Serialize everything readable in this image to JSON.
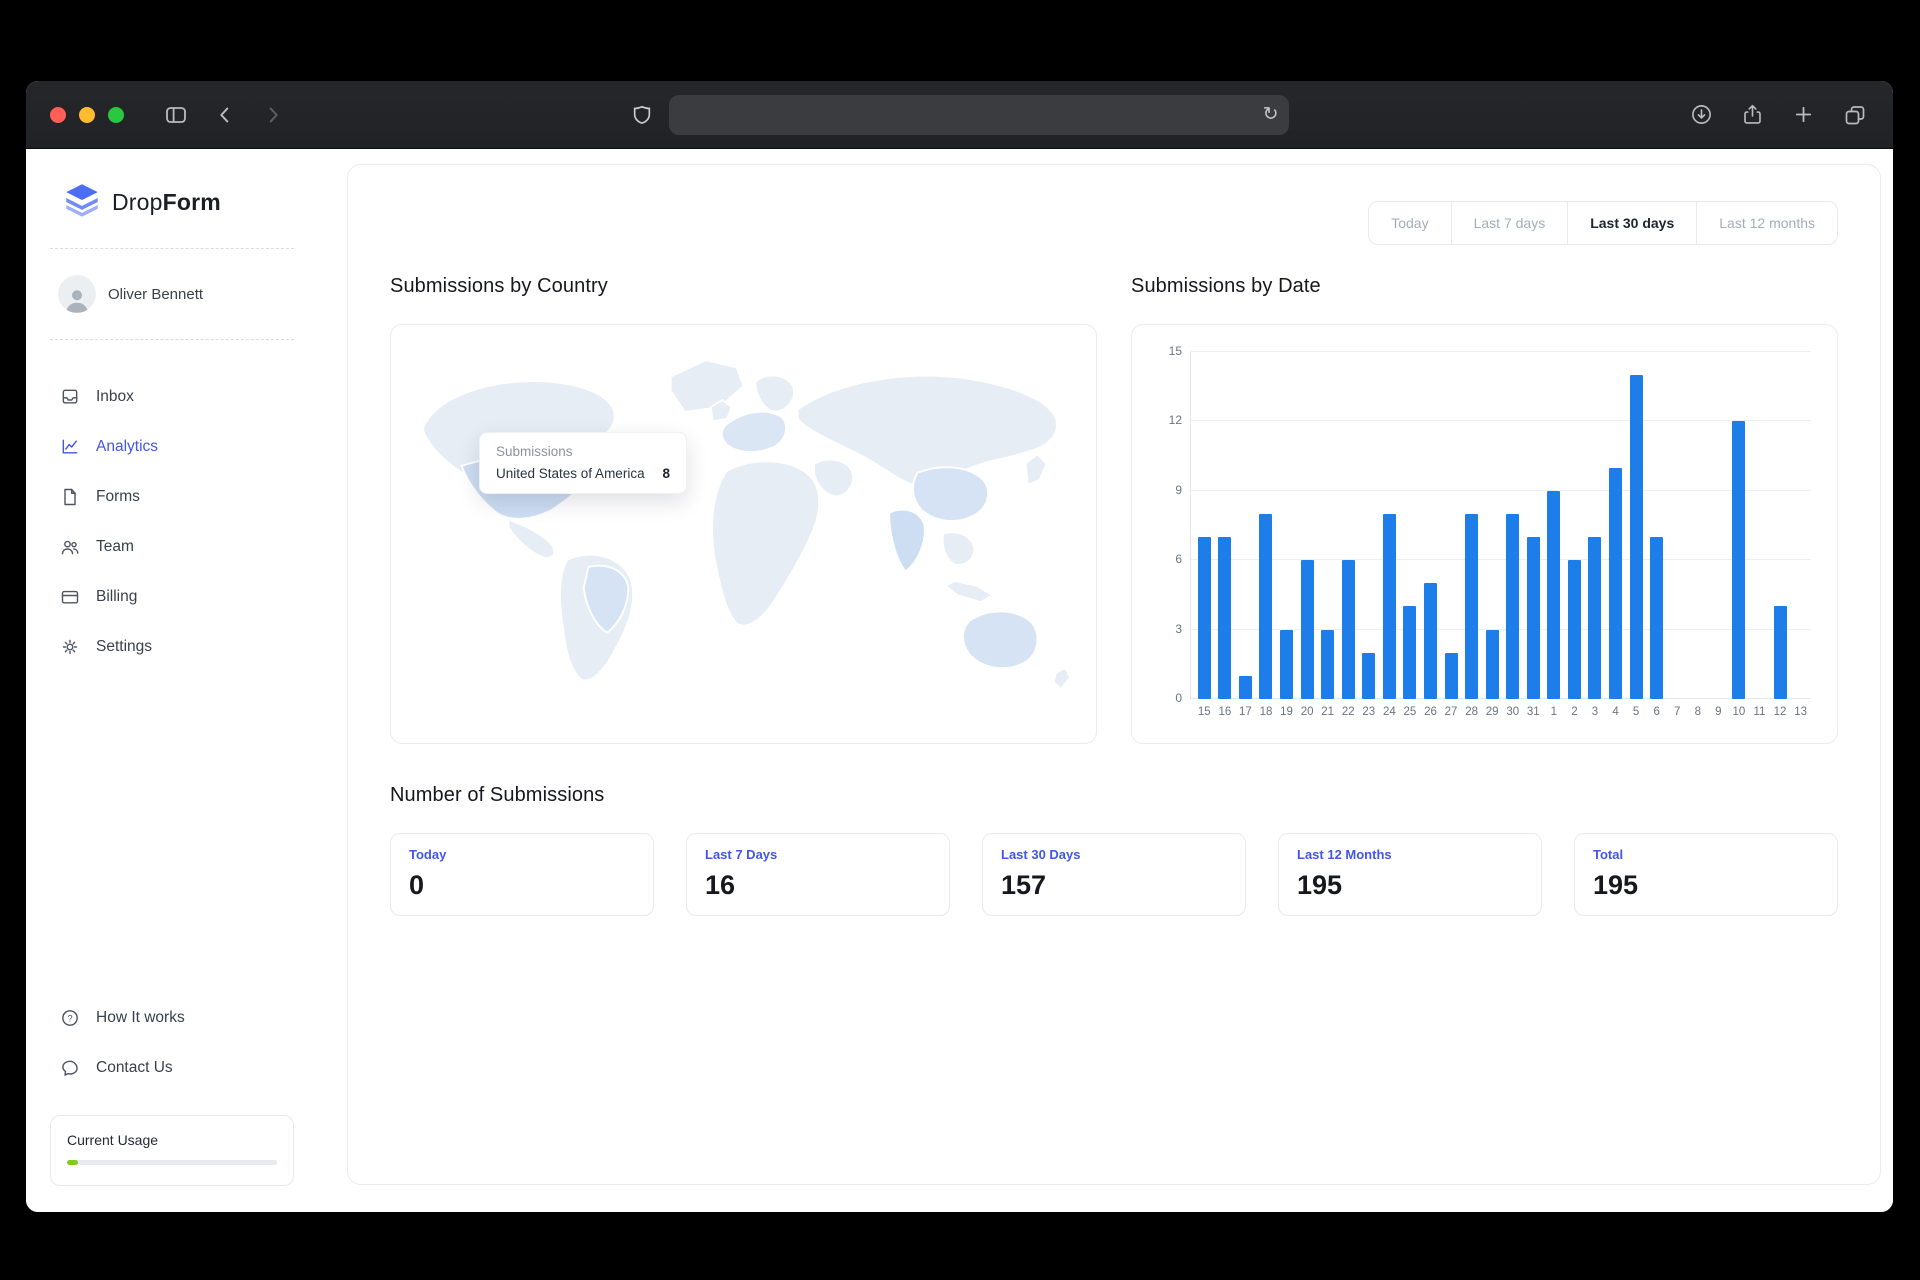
{
  "browser": {
    "address_bar": {
      "value": "",
      "placeholder": ""
    },
    "icons": [
      "sidebar-toggle",
      "back",
      "forward",
      "shield",
      "reload",
      "download",
      "share",
      "new-tab",
      "tab-overview"
    ]
  },
  "sidebar": {
    "logo": {
      "brand_prefix": "Drop",
      "brand_suffix": "Form"
    },
    "user": {
      "name": "Oliver Bennett"
    },
    "nav": [
      {
        "label": "Inbox",
        "icon": "inbox-icon",
        "active": false
      },
      {
        "label": "Analytics",
        "icon": "analytics-icon",
        "active": true
      },
      {
        "label": "Forms",
        "icon": "forms-icon",
        "active": false
      },
      {
        "label": "Team",
        "icon": "team-icon",
        "active": false
      },
      {
        "label": "Billing",
        "icon": "billing-icon",
        "active": false
      },
      {
        "label": "Settings",
        "icon": "settings-icon",
        "active": false
      }
    ],
    "footer_nav": [
      {
        "label": "How It works",
        "icon": "help-circle-icon"
      },
      {
        "label": "Contact Us",
        "icon": "chat-bubble-icon"
      }
    ],
    "usage": {
      "title": "Current Usage",
      "percent": 5,
      "fill_color": "#82c91e"
    }
  },
  "main": {
    "range_tabs": [
      {
        "label": "Today",
        "active": false
      },
      {
        "label": "Last 7 days",
        "active": false
      },
      {
        "label": "Last 30 days",
        "active": true
      },
      {
        "label": "Last 12 months",
        "active": false
      }
    ],
    "map_section": {
      "title": "Submissions by Country",
      "tooltip": {
        "title": "Submissions",
        "country": "United States of America",
        "value": "8"
      }
    },
    "chart_section": {
      "title": "Submissions by Date"
    },
    "stats_section": {
      "title": "Number of Submissions",
      "cards": [
        {
          "label": "Today",
          "value": "0"
        },
        {
          "label": "Last 7 Days",
          "value": "16"
        },
        {
          "label": "Last 30 Days",
          "value": "157"
        },
        {
          "label": "Last 12 Months",
          "value": "195"
        },
        {
          "label": "Total",
          "value": "195"
        }
      ]
    }
  },
  "chart_data": {
    "type": "bar",
    "title": "Submissions by Date",
    "categories": [
      "15",
      "16",
      "17",
      "18",
      "19",
      "20",
      "21",
      "22",
      "23",
      "24",
      "25",
      "26",
      "27",
      "28",
      "29",
      "30",
      "31",
      "1",
      "2",
      "3",
      "4",
      "5",
      "6",
      "7",
      "8",
      "9",
      "10",
      "11",
      "12",
      "13"
    ],
    "values": [
      7,
      7,
      1,
      8,
      3,
      6,
      3,
      6,
      2,
      8,
      4,
      5,
      2,
      8,
      3,
      8,
      7,
      9,
      6,
      7,
      10,
      14,
      7,
      0,
      0,
      0,
      12,
      0,
      4,
      0
    ],
    "xlabel": "",
    "ylabel": "",
    "ylim": [
      0,
      15
    ],
    "yticks": [
      0,
      3,
      6,
      9,
      12,
      15
    ],
    "bar_color": "#1d7de9",
    "grid": true,
    "legend": false
  },
  "colors": {
    "accent_blue": "#4255ee",
    "bar_blue": "#1d7de9",
    "usage_green": "#82c91e",
    "map_base": "#e7edf5",
    "map_highlight": "#cdddf2"
  }
}
